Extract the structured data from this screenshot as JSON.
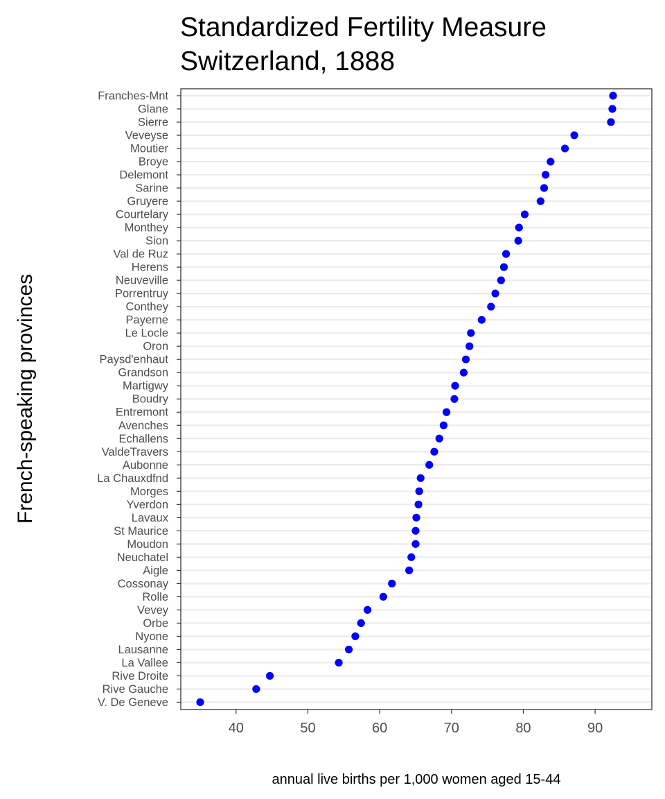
{
  "chart_data": {
    "type": "scatter",
    "title_lines": [
      "Standardized Fertility Measure",
      "Switzerland, 1888"
    ],
    "xlabel": "annual live births per 1,000 women aged 15-44",
    "ylabel": "French-speaking provinces",
    "xlim": [
      32.3,
      97.9
    ],
    "xticks": [
      40,
      50,
      60,
      70,
      80,
      90
    ],
    "grid": "horizontal major only",
    "legend": "none",
    "point_color": "#0000ff",
    "categories": [
      "Franches-Mnt",
      "Glane",
      "Sierre",
      "Veveyse",
      "Moutier",
      "Broye",
      "Delemont",
      "Sarine",
      "Gruyere",
      "Courtelary",
      "Monthey",
      "Sion",
      "Val de Ruz",
      "Herens",
      "Neuveville",
      "Porrentruy",
      "Conthey",
      "Payerne",
      "Le Locle",
      "Oron",
      "Paysd'enhaut",
      "Grandson",
      "Martigwy",
      "Boudry",
      "Entremont",
      "Avenches",
      "Echallens",
      "ValdeTravers",
      "Aubonne",
      "La Chauxdfnd",
      "Morges",
      "Yverdon",
      "Lavaux",
      "St Maurice",
      "Moudon",
      "Neuchatel",
      "Aigle",
      "Cossonay",
      "Rolle",
      "Vevey",
      "Orbe",
      "Nyone",
      "Lausanne",
      "La Vallee",
      "Rive Droite",
      "Rive Gauche",
      "V. De Geneve"
    ],
    "values": [
      92.5,
      92.4,
      92.2,
      87.1,
      85.8,
      83.8,
      83.1,
      82.9,
      82.4,
      80.2,
      79.4,
      79.3,
      77.6,
      77.3,
      76.9,
      76.1,
      75.5,
      74.2,
      72.7,
      72.5,
      72.0,
      71.7,
      70.5,
      70.4,
      69.3,
      68.9,
      68.3,
      67.6,
      66.9,
      65.7,
      65.5,
      65.4,
      65.1,
      65.0,
      65.0,
      64.4,
      64.1,
      61.7,
      60.5,
      58.3,
      57.4,
      56.6,
      55.7,
      54.3,
      44.7,
      42.8,
      35.0
    ]
  }
}
